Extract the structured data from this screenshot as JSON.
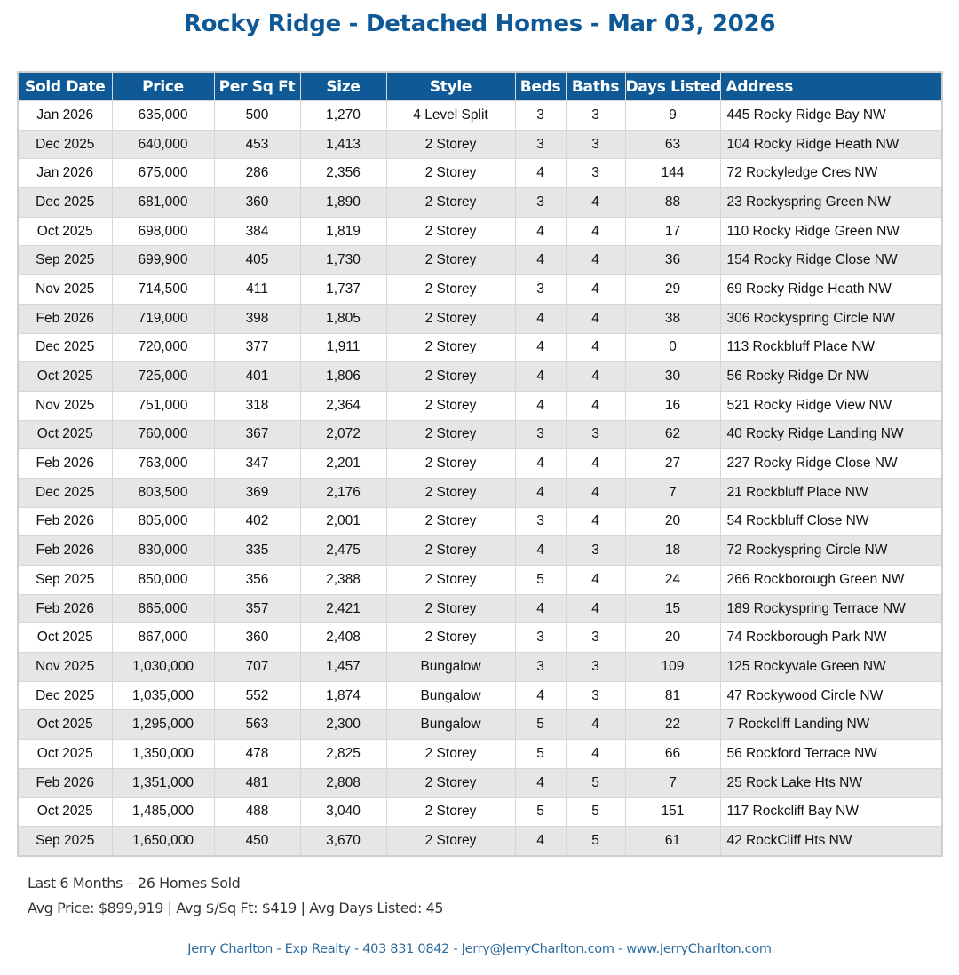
{
  "title": "Rocky Ridge - Detached Homes - Mar 03, 2026",
  "colors": {
    "header_bg": "#0f5a96",
    "title": "#0f5a96",
    "alt_row": "#e6e6e6"
  },
  "table": {
    "headers": [
      "Sold Date",
      "Price",
      "Per Sq Ft",
      "Size",
      "Style",
      "Beds",
      "Baths",
      "Days Listed",
      "Address"
    ],
    "rows": [
      [
        "Jan 2026",
        "635,000",
        "500",
        "1,270",
        "4 Level Split",
        "3",
        "3",
        "9",
        "445 Rocky Ridge Bay NW"
      ],
      [
        "Dec 2025",
        "640,000",
        "453",
        "1,413",
        "2 Storey",
        "3",
        "3",
        "63",
        "104 Rocky Ridge Heath NW"
      ],
      [
        "Jan 2026",
        "675,000",
        "286",
        "2,356",
        "2 Storey",
        "4",
        "3",
        "144",
        "72 Rockyledge Cres NW"
      ],
      [
        "Dec 2025",
        "681,000",
        "360",
        "1,890",
        "2 Storey",
        "3",
        "4",
        "88",
        "23 Rockyspring Green NW"
      ],
      [
        "Oct 2025",
        "698,000",
        "384",
        "1,819",
        "2 Storey",
        "4",
        "4",
        "17",
        "110 Rocky Ridge Green NW"
      ],
      [
        "Sep 2025",
        "699,900",
        "405",
        "1,730",
        "2 Storey",
        "4",
        "4",
        "36",
        "154 Rocky Ridge Close NW"
      ],
      [
        "Nov 2025",
        "714,500",
        "411",
        "1,737",
        "2 Storey",
        "3",
        "4",
        "29",
        "69 Rocky Ridge Heath NW"
      ],
      [
        "Feb 2026",
        "719,000",
        "398",
        "1,805",
        "2 Storey",
        "4",
        "4",
        "38",
        "306 Rockyspring Circle NW"
      ],
      [
        "Dec 2025",
        "720,000",
        "377",
        "1,911",
        "2 Storey",
        "4",
        "4",
        "0",
        "113 Rockbluff Place NW"
      ],
      [
        "Oct 2025",
        "725,000",
        "401",
        "1,806",
        "2 Storey",
        "4",
        "4",
        "30",
        "56 Rocky Ridge Dr NW"
      ],
      [
        "Nov 2025",
        "751,000",
        "318",
        "2,364",
        "2 Storey",
        "4",
        "4",
        "16",
        "521 Rocky Ridge View NW"
      ],
      [
        "Oct 2025",
        "760,000",
        "367",
        "2,072",
        "2 Storey",
        "3",
        "3",
        "62",
        "40 Rocky Ridge Landing NW"
      ],
      [
        "Feb 2026",
        "763,000",
        "347",
        "2,201",
        "2 Storey",
        "4",
        "4",
        "27",
        "227 Rocky Ridge Close NW"
      ],
      [
        "Dec 2025",
        "803,500",
        "369",
        "2,176",
        "2 Storey",
        "4",
        "4",
        "7",
        "21 Rockbluff Place NW"
      ],
      [
        "Feb 2026",
        "805,000",
        "402",
        "2,001",
        "2 Storey",
        "3",
        "4",
        "20",
        "54 Rockbluff Close NW"
      ],
      [
        "Feb 2026",
        "830,000",
        "335",
        "2,475",
        "2 Storey",
        "4",
        "3",
        "18",
        "72 Rockyspring Circle NW"
      ],
      [
        "Sep 2025",
        "850,000",
        "356",
        "2,388",
        "2 Storey",
        "5",
        "4",
        "24",
        "266 Rockborough Green NW"
      ],
      [
        "Feb 2026",
        "865,000",
        "357",
        "2,421",
        "2 Storey",
        "4",
        "4",
        "15",
        "189 Rockyspring Terrace NW"
      ],
      [
        "Oct 2025",
        "867,000",
        "360",
        "2,408",
        "2 Storey",
        "3",
        "3",
        "20",
        "74 Rockborough Park NW"
      ],
      [
        "Nov 2025",
        "1,030,000",
        "707",
        "1,457",
        "Bungalow",
        "3",
        "3",
        "109",
        "125 Rockyvale Green NW"
      ],
      [
        "Dec 2025",
        "1,035,000",
        "552",
        "1,874",
        "Bungalow",
        "4",
        "3",
        "81",
        "47 Rockywood Circle NW"
      ],
      [
        "Oct 2025",
        "1,295,000",
        "563",
        "2,300",
        "Bungalow",
        "5",
        "4",
        "22",
        "7 Rockcliff Landing NW"
      ],
      [
        "Oct 2025",
        "1,350,000",
        "478",
        "2,825",
        "2 Storey",
        "5",
        "4",
        "66",
        "56 Rockford Terrace NW"
      ],
      [
        "Feb 2026",
        "1,351,000",
        "481",
        "2,808",
        "2 Storey",
        "4",
        "5",
        "7",
        "25 Rock Lake Hts NW"
      ],
      [
        "Oct 2025",
        "1,485,000",
        "488",
        "3,040",
        "2 Storey",
        "5",
        "5",
        "151",
        "117 Rockcliff Bay NW"
      ],
      [
        "Sep 2025",
        "1,650,000",
        "450",
        "3,670",
        "2 Storey",
        "4",
        "5",
        "61",
        "42 RockCliff Hts NW"
      ]
    ]
  },
  "summary": {
    "line1": "Last 6 Months – 26 Homes Sold",
    "line2": "Avg Price: $899,919 | Avg $/Sq Ft: $419 | Avg Days Listed: 45"
  },
  "footer": "Jerry Charlton - Exp Realty - 403 831 0842 - Jerry@JerryCharlton.com - www.JerryCharlton.com"
}
